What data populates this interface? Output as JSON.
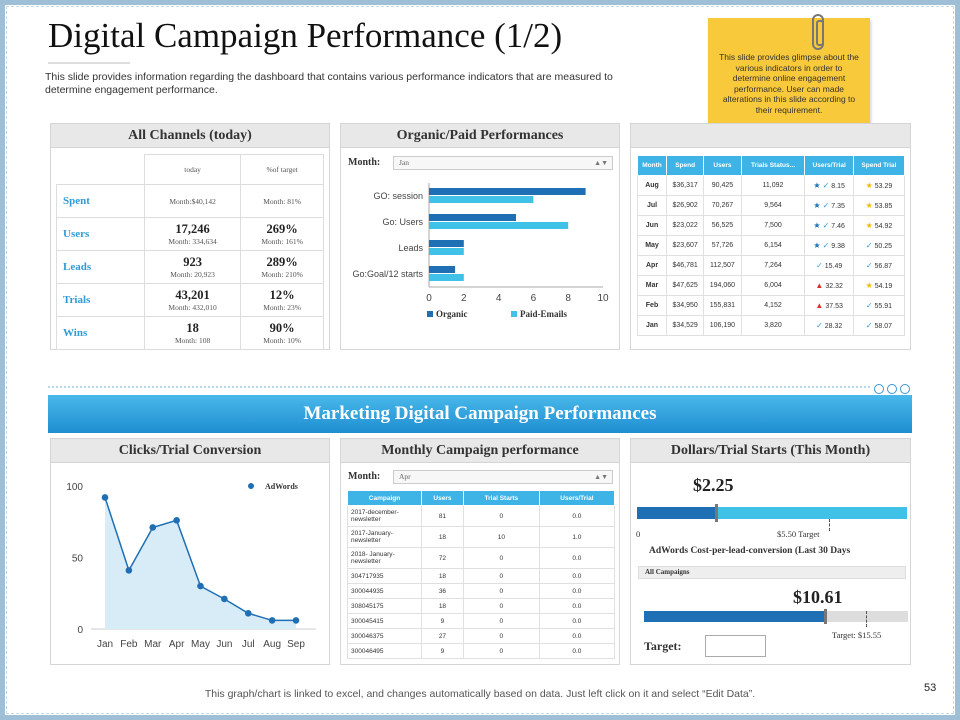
{
  "title": "Digital Campaign Performance (1/2)",
  "subtitle": "This slide provides information regarding the dashboard that contains various performance indicators that are measured to determine engagement performance.",
  "note": "This slide provides glimpse about the various indicators in order to determine online engagement performance. User can made alterations in this slide according to their requirement.",
  "channels": {
    "title": "All Channels (today)",
    "col_today": "today",
    "col_target": "%of target",
    "rows": [
      {
        "label": "Spent",
        "today_big": "",
        "today_sub": "Month:$40,142",
        "target_big": "",
        "target_sub": "Month: 81%"
      },
      {
        "label": "Users",
        "today_big": "17,246",
        "today_sub": "Month: 334,634",
        "target_big": "269%",
        "target_sub": "Month: 161%"
      },
      {
        "label": "Leads",
        "today_big": "923",
        "today_sub": "Month: 20,923",
        "target_big": "289%",
        "target_sub": "Month: 210%"
      },
      {
        "label": "Trials",
        "today_big": "43,201",
        "today_sub": "Month: 432,010",
        "target_big": "12%",
        "target_sub": "Month: 23%"
      },
      {
        "label": "Wins",
        "today_big": "18",
        "today_sub": "Month: 108",
        "target_big": "90%",
        "target_sub": "Month: 10%"
      }
    ]
  },
  "organic": {
    "title": "Organic/Paid Performances",
    "month_label": "Month:",
    "month_value": "Jan"
  },
  "monthly_table": {
    "headers": [
      "Month",
      "Spend",
      "Users",
      "Trials Status...",
      "Users/Trial",
      "Spend Trial"
    ],
    "rows": [
      [
        "Aug",
        "$36,317",
        "90,425",
        "11,092",
        "8.15",
        "53.29"
      ],
      [
        "Jul",
        "$26,902",
        "70,267",
        "9,564",
        "7.35",
        "53.85"
      ],
      [
        "Jun",
        "$23,022",
        "56,525",
        "7,500",
        "7.46",
        "54.92"
      ],
      [
        "May",
        "$23,607",
        "57,726",
        "6,154",
        "9.38",
        "50.25"
      ],
      [
        "Apr",
        "$46,781",
        "112,507",
        "7,264",
        "15.49",
        "56.87"
      ],
      [
        "Mar",
        "$47,625",
        "194,060",
        "6,004",
        "32.32",
        "54.19"
      ],
      [
        "Feb",
        "$34,950",
        "155,831",
        "4,152",
        "37.53",
        "55.91"
      ],
      [
        "Jan",
        "$34,529",
        "106,190",
        "3,820",
        "28.32",
        "58.07"
      ]
    ],
    "ut_icons": [
      "star-check",
      "star-check",
      "star-check",
      "star-check",
      "check",
      "triangle",
      "triangle",
      "check"
    ],
    "st_icons": [
      "star",
      "star",
      "star",
      "check",
      "check",
      "star",
      "check",
      "check"
    ]
  },
  "banner": "Marketing Digital Campaign Performances",
  "clicks": {
    "title": "Clicks/Trial Conversion"
  },
  "campaign": {
    "title": "Monthly Campaign performance",
    "month_label": "Month:",
    "month_value": "Apr",
    "headers": [
      "Campaign",
      "Users",
      "Trial Starts",
      "Users/Trial"
    ],
    "rows": [
      [
        "2017-december-newsletter",
        "81",
        "0",
        "0.0"
      ],
      [
        "2017-January-newsletter",
        "18",
        "10",
        "1.0"
      ],
      [
        "2018- January-newsletter",
        "72",
        "0",
        "0.0"
      ],
      [
        "304717935",
        "18",
        "0",
        "0.0"
      ],
      [
        "300044935",
        "36",
        "0",
        "0.0"
      ],
      [
        "308045175",
        "18",
        "0",
        "0.0"
      ],
      [
        "300045415",
        "9",
        "0",
        "0.0"
      ],
      [
        "300046375",
        "27",
        "0",
        "0.0"
      ],
      [
        "300046495",
        "9",
        "0",
        "0.0"
      ]
    ]
  },
  "dollars": {
    "title": "Dollars/Trial Starts (This Month)",
    "value1": "$2.25",
    "zero": "0",
    "target1": "$5.50 Target",
    "fill1": 0.29,
    "marker1": 0.29,
    "target_pos1": 0.71,
    "cpl_title": "AdWords Cost-per-lead-conversion (Last 30 Days",
    "filter": "All Campaigns",
    "value2": "$10.61",
    "fill2": 0.68,
    "target_pos2": 0.84,
    "target2": "Target: $15.55",
    "target_label": "Target:"
  },
  "footer": "This graph/chart is linked to excel, and changes automatically based on data. Just left click on it and select “Edit Data”.",
  "page_number": "53",
  "colors": {
    "dark_blue": "#1f6fb5",
    "light_blue": "#3fc1e8",
    "gold": "#f5b800",
    "red": "#d9302c"
  },
  "chart_data": [
    {
      "type": "bar",
      "orientation": "horizontal",
      "categories": [
        "GO: session",
        "Go: Users",
        "Leads",
        "Go:Goal/12 starts"
      ],
      "series": [
        {
          "name": "Organic",
          "values": [
            9,
            5,
            2,
            1.5
          ]
        },
        {
          "name": "Paid-Emails",
          "values": [
            6,
            8,
            2,
            2
          ]
        }
      ],
      "x_ticks": [
        "0",
        "2",
        "4",
        "6",
        "8",
        "10"
      ],
      "xlim": [
        0,
        10
      ],
      "legend": "bottom"
    },
    {
      "type": "area",
      "categories": [
        "Jan",
        "Feb",
        "Mar",
        "Apr",
        "May",
        "Jun",
        "Jul",
        "Aug",
        "Sep"
      ],
      "series": [
        {
          "name": "AdWords",
          "values": [
            92,
            41,
            71,
            76,
            30,
            21,
            11,
            6,
            6
          ]
        }
      ],
      "y_ticks": [
        "0",
        "50",
        "100"
      ],
      "ylim": [
        0,
        100
      ],
      "legend": "top-right"
    }
  ]
}
